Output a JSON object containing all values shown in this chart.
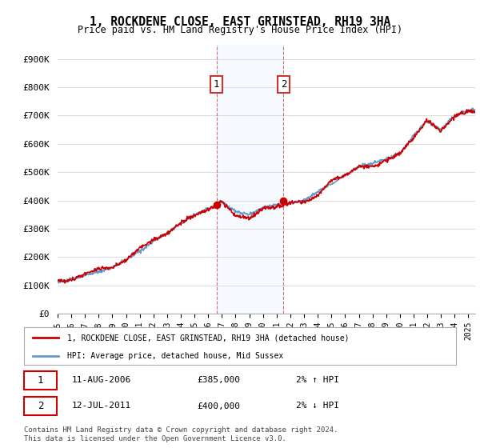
{
  "title": "1, ROCKDENE CLOSE, EAST GRINSTEAD, RH19 3HA",
  "subtitle": "Price paid vs. HM Land Registry's House Price Index (HPI)",
  "ylabel_ticks": [
    "£0",
    "£100K",
    "£200K",
    "£300K",
    "£400K",
    "£500K",
    "£600K",
    "£700K",
    "£800K",
    "£900K"
  ],
  "ytick_vals": [
    0,
    100000,
    200000,
    300000,
    400000,
    500000,
    600000,
    700000,
    800000,
    900000
  ],
  "ylim": [
    0,
    950000
  ],
  "xlim_start": 1995.0,
  "xlim_end": 2025.5,
  "legend_line1": "1, ROCKDENE CLOSE, EAST GRINSTEAD, RH19 3HA (detached house)",
  "legend_line2": "HPI: Average price, detached house, Mid Sussex",
  "sale1_label": "1",
  "sale1_date": "11-AUG-2006",
  "sale1_price": "£385,000",
  "sale1_hpi": "2% ↑ HPI",
  "sale1_year": 2006.6,
  "sale1_value": 385000,
  "sale2_label": "2",
  "sale2_date": "12-JUL-2011",
  "sale2_price": "£400,000",
  "sale2_hpi": "2% ↓ HPI",
  "sale2_year": 2011.5,
  "sale2_value": 400000,
  "footer": "Contains HM Land Registry data © Crown copyright and database right 2024.\nThis data is licensed under the Open Government Licence v3.0.",
  "line1_color": "#cc0000",
  "line2_color": "#6699cc",
  "bg_color": "#ffffff",
  "grid_color": "#dddddd",
  "shade_color": "#ddeeff",
  "annotation_box_color": "#cc0000",
  "hpi_years": [
    1995,
    1996,
    1997,
    1998,
    1999,
    2000,
    2001,
    2002,
    2003,
    2004,
    2005,
    2006,
    2007,
    2008,
    2009,
    2010,
    2011,
    2012,
    2013,
    2014,
    2015,
    2016,
    2017,
    2018,
    2019,
    2020,
    2021,
    2022,
    2023,
    2024,
    2025
  ],
  "hpi_vals": [
    112000.0,
    120000.0,
    135000.0,
    148000.0,
    165000.0,
    190000.0,
    220000.0,
    255000.0,
    285000.0,
    320000.0,
    350000.0,
    370000.0,
    395000.0,
    360000.0,
    350000.0,
    375000.0,
    385000.0,
    390000.0,
    400000.0,
    430000.0,
    460000.0,
    490000.0,
    520000.0,
    530000.0,
    545000.0,
    565000.0,
    630000.0,
    680000.0,
    650000.0,
    700000.0,
    720000.0
  ]
}
